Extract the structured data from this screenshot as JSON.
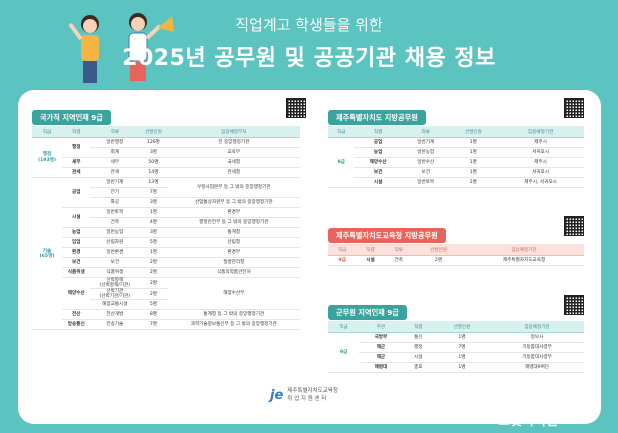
{
  "header": {
    "subtitle": "직업계고 학생들을 위한",
    "title": "2025년 공무원 및 공공기관 채용 정보"
  },
  "colors": {
    "teal": "#3aa39e",
    "red": "#e8635b",
    "bg": "#5cc4c0"
  },
  "national": {
    "tag": "국가직 지역인재 9급",
    "headers": [
      "직급",
      "직렬",
      "직류",
      "선발인원",
      "임용예정부처"
    ],
    "rows": [
      {
        "grade": "행정\n(193명)",
        "series": "행정",
        "kind": "일반행정",
        "count": "126명",
        "dept": "전 중앙행정기관"
      },
      {
        "grade": "",
        "series": "",
        "kind": "회계",
        "count": "3명",
        "dept": "교육부"
      },
      {
        "grade": "",
        "series": "세무",
        "kind": "세무",
        "count": "50명",
        "dept": "국세청"
      },
      {
        "grade": "",
        "series": "관세",
        "kind": "관세",
        "count": "14명",
        "dept": "관세청"
      },
      {
        "grade": "",
        "series": "공업",
        "kind": "일반기계",
        "count": "13명",
        "dept": "우정사업본부 등 그 밖의 중앙행정기관"
      },
      {
        "grade": "",
        "series": "",
        "kind": "전기",
        "count": "7명",
        "dept": ""
      },
      {
        "grade": "",
        "series": "",
        "kind": "화공",
        "count": "3명",
        "dept": "산업통상자원부 등 그 밖의 중앙행정기관"
      },
      {
        "grade": "",
        "series": "시설",
        "kind": "일반토목",
        "count": "1명",
        "dept": "환경부"
      },
      {
        "grade": "",
        "series": "",
        "kind": "건축",
        "count": "4명",
        "dept": "행정안전부 등 그 밖의 중앙행정기관"
      },
      {
        "grade": "기술\n(65명)",
        "series": "농업",
        "kind": "일반농업",
        "count": "3명",
        "dept": "통계청"
      },
      {
        "grade": "",
        "series": "임업",
        "kind": "산림자원",
        "count": "5명",
        "dept": "산림청"
      },
      {
        "grade": "",
        "series": "환경",
        "kind": "일반환경",
        "count": "1명",
        "dept": "환경부"
      },
      {
        "grade": "",
        "series": "보건",
        "kind": "보건",
        "count": "2명",
        "dept": "질병관리청"
      },
      {
        "grade": "",
        "series": "식품위생",
        "kind": "식품위생",
        "count": "2명",
        "dept": "식품의약품안전처"
      },
      {
        "grade": "",
        "series": "해양수산",
        "kind": "선박항해\n(선박항해/기관)",
        "count": "2명",
        "dept": "해양수산부"
      },
      {
        "grade": "",
        "series": "",
        "kind": "선박기관\n(선박기관/기관)",
        "count": "2명",
        "dept": ""
      },
      {
        "grade": "",
        "series": "",
        "kind": "해양교통시설",
        "count": "5명",
        "dept": ""
      },
      {
        "grade": "",
        "series": "전산",
        "kind": "전산개발",
        "count": "8명",
        "dept": "통계청 등 그 밖의 중앙행정기관"
      },
      {
        "grade": "",
        "series": "방송통신",
        "kind": "전송기술",
        "count": "7명",
        "dept": "과학기술정보통신부 등 그 밖의 중앙행정기관"
      }
    ]
  },
  "jeju": {
    "tag": "제주특별자치도 지방공무원",
    "headers": [
      "직급",
      "직렬",
      "직류",
      "선발인원",
      "임용예정기관"
    ],
    "grade": "9급",
    "rows": [
      {
        "series": "공업",
        "kind": "일반기계",
        "count": "1명",
        "dept": "제주시"
      },
      {
        "series": "농업",
        "kind": "일반농업",
        "count": "1명",
        "dept": "서귀포시"
      },
      {
        "series": "해양수산",
        "kind": "일반수산",
        "count": "1명",
        "dept": "제주시"
      },
      {
        "series": "보건",
        "kind": "보건",
        "count": "1명",
        "dept": "서귀포시"
      },
      {
        "series": "시설",
        "kind": "일반토목",
        "count": "2명",
        "dept": "제주시, 서귀포시"
      }
    ]
  },
  "jejuEdu": {
    "tag": "제주특별자치도교육청 지방공무원",
    "headers": [
      "직급",
      "직렬",
      "직류",
      "선발인원",
      "임용예정기관"
    ],
    "rows": [
      {
        "grade": "9급",
        "series": "시설",
        "kind": "건축",
        "count": "2명",
        "dept": "제주특별자치도교육청"
      }
    ]
  },
  "military": {
    "tag": "군무원 지역인재 9급",
    "headers": [
      "직급",
      "주관",
      "직렬",
      "선발인원",
      "임용예정기관"
    ],
    "grade": "9급",
    "rows": [
      {
        "org": "국방부",
        "series": "통신",
        "count": "1명",
        "dept": "정보사"
      },
      {
        "org": "해군",
        "series": "행정",
        "count": "7명",
        "dept": "기동함대사령부"
      },
      {
        "org": "해군",
        "series": "시설",
        "count": "1명",
        "dept": "기동함대사령부"
      },
      {
        "org": "해병대",
        "series": "총포",
        "count": "1명",
        "dept": "해병대9여단"
      }
    ]
  },
  "footer": {
    "logo_mark": "je",
    "org_line1": "제주특별자치도교육청",
    "org_line2": "취 업 지 원 센 터"
  },
  "watermark": "브릿지저널"
}
